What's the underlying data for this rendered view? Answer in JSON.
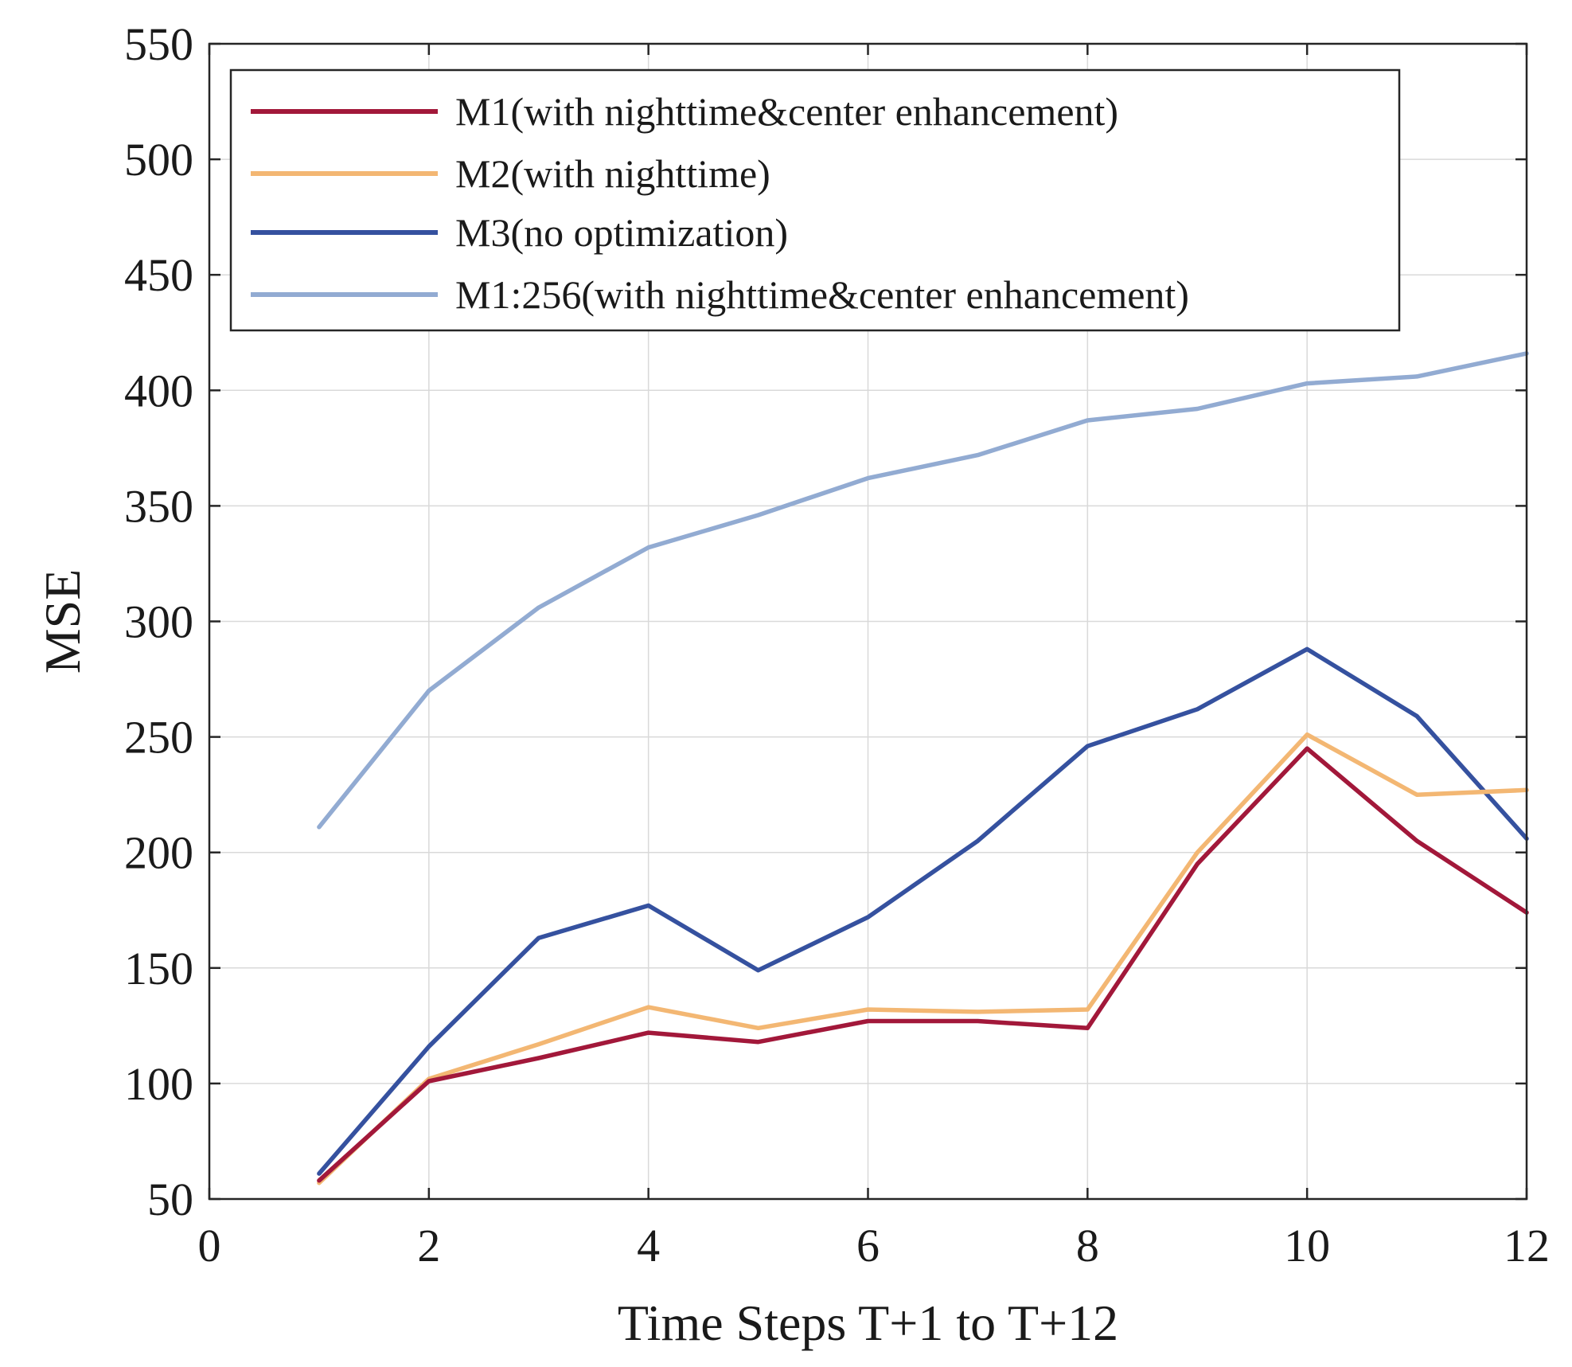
{
  "chart_data": {
    "type": "line",
    "title": "",
    "xlabel": "Time Steps T+1 to T+12",
    "ylabel": "MSE",
    "xlim": [
      0,
      12
    ],
    "ylim": [
      50,
      550
    ],
    "x_ticks": [
      0,
      2,
      4,
      6,
      8,
      10,
      12
    ],
    "y_ticks": [
      50,
      100,
      150,
      200,
      250,
      300,
      350,
      400,
      450,
      500,
      550
    ],
    "grid": true,
    "legend_position": "top-left",
    "x": [
      1,
      2,
      3,
      4,
      5,
      6,
      7,
      8,
      9,
      10,
      11,
      12
    ],
    "series": [
      {
        "name": "M1(with nighttime&center enhancement)",
        "color": "#a2183a",
        "values": [
          58,
          101,
          111,
          122,
          118,
          127,
          127,
          124,
          195,
          245,
          205,
          174
        ]
      },
      {
        "name": "M2(with nighttime)",
        "color": "#f3b773",
        "values": [
          57,
          102,
          117,
          133,
          124,
          132,
          131,
          132,
          200,
          251,
          225,
          227
        ]
      },
      {
        "name": "M3(no optimization)",
        "color": "#35519f",
        "values": [
          61,
          116,
          163,
          177,
          149,
          172,
          205,
          246,
          262,
          288,
          259,
          206
        ]
      },
      {
        "name": "M1:256(with nighttime&center enhancement)",
        "color": "#92abd2",
        "values": [
          211,
          270,
          306,
          332,
          346,
          362,
          372,
          387,
          392,
          403,
          406,
          416
        ]
      }
    ]
  }
}
